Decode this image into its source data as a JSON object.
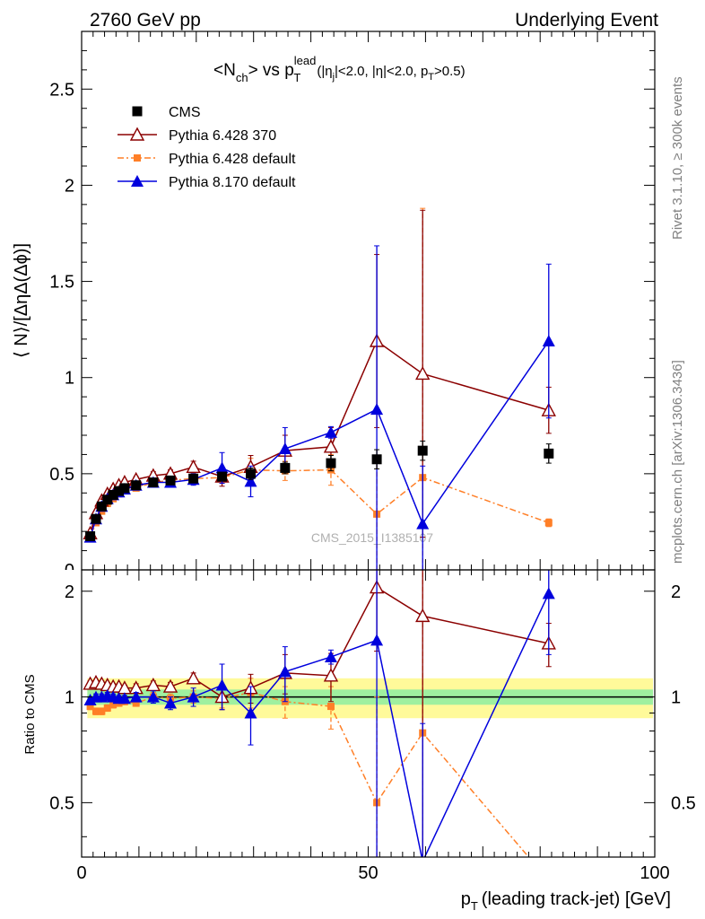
{
  "header": {
    "left": "2760 GeV pp",
    "right": "Underlying Event"
  },
  "side_labels": {
    "rivet": "Rivet 3.1.10, ≥ 300k events",
    "mcplots": "mcplots.cern.ch [arXiv:1306.3436]"
  },
  "colors": {
    "cms": "#000000",
    "p6_370": "#8b0000",
    "p6_default": "#ff7f27",
    "p8_default": "#0000dd",
    "band_inner": "#9ff09f",
    "band_outer": "#fffa9a"
  },
  "chart_data": [
    {
      "type": "scatter",
      "title": "<N_ch> vs p_T^lead (|η_j|<2.0, |η|<2.0, p_T>0.5)",
      "title_parts": {
        "main": "<N",
        "main_sub": "ch",
        "mid": "> vs p",
        "mid_sup": "lead",
        "mid_sub": "T",
        "cut1": "(|η",
        "cut1_sub": "j",
        "cut2": "|<2.0, |η|<2.0, p",
        "cut2_sub": "T",
        "cut3": ">0.5)"
      },
      "ylabel": "⟨ N⟩/[ΔηΔ(Δϕ)]",
      "watermark": "CMS_2015_I1385107",
      "xlim": [
        0,
        100
      ],
      "ylim": [
        0,
        2.8
      ],
      "y_ticks": [
        "0.5",
        "1",
        "1.5",
        "2",
        "2.5"
      ],
      "y_tick_values": [
        0.5,
        1,
        1.5,
        2,
        2.5
      ],
      "legend_position": "top-left",
      "series": [
        {
          "name": "CMS",
          "key": "cms",
          "marker": "square",
          "x": [
            1.5,
            2.5,
            3.5,
            4.5,
            5.5,
            6.5,
            7.5,
            9.5,
            12.5,
            15.5,
            19.5,
            24.5,
            29.5,
            35.5,
            43.5,
            51.5,
            59.5,
            81.5
          ],
          "y": [
            0.175,
            0.265,
            0.33,
            0.365,
            0.39,
            0.41,
            0.425,
            0.44,
            0.455,
            0.465,
            0.475,
            0.485,
            0.5,
            0.53,
            0.555,
            0.575,
            0.62,
            0.605
          ],
          "err": [
            0.01,
            0.01,
            0.01,
            0.01,
            0.01,
            0.01,
            0.01,
            0.01,
            0.015,
            0.015,
            0.02,
            0.02,
            0.03,
            0.03,
            0.04,
            0.05,
            0.05,
            0.05
          ]
        },
        {
          "name": "Pythia 6.428 370",
          "key": "p6_370",
          "marker": "open-triangle",
          "x": [
            1.5,
            2.5,
            3.5,
            4.5,
            5.5,
            6.5,
            7.5,
            9.5,
            12.5,
            15.5,
            19.5,
            24.5,
            29.5,
            35.5,
            43.5,
            51.5,
            59.5,
            81.5
          ],
          "y": [
            0.19,
            0.295,
            0.36,
            0.395,
            0.42,
            0.44,
            0.455,
            0.47,
            0.49,
            0.5,
            0.535,
            0.485,
            0.535,
            0.62,
            0.64,
            1.19,
            1.02,
            0.83
          ],
          "err": [
            0.01,
            0.01,
            0.01,
            0.01,
            0.01,
            0.01,
            0.01,
            0.015,
            0.02,
            0.02,
            0.03,
            0.05,
            0.06,
            0.08,
            0.1,
            0.45,
            0.85,
            0.12
          ]
        },
        {
          "name": "Pythia 6.428 default",
          "key": "p6_default",
          "marker": "small-square",
          "dashed": true,
          "x": [
            1.5,
            2.5,
            3.5,
            4.5,
            5.5,
            6.5,
            7.5,
            9.5,
            12.5,
            15.5,
            19.5,
            24.5,
            29.5,
            35.5,
            43.5,
            51.5,
            59.5,
            81.5
          ],
          "y": [
            0.165,
            0.245,
            0.305,
            0.345,
            0.37,
            0.395,
            0.415,
            0.425,
            0.455,
            0.465,
            0.475,
            0.48,
            0.52,
            0.515,
            0.52,
            0.29,
            0.48,
            0.245
          ],
          "err": [
            0.01,
            0.01,
            0.01,
            0.01,
            0.01,
            0.01,
            0.01,
            0.01,
            0.015,
            0.015,
            0.02,
            0.03,
            0.06,
            0.05,
            0.08,
            0.3,
            1.4,
            0.02
          ]
        },
        {
          "name": "Pythia 8.170 default",
          "key": "p8_default",
          "marker": "filled-triangle",
          "x": [
            1.5,
            2.5,
            3.5,
            4.5,
            5.5,
            6.5,
            7.5,
            9.5,
            12.5,
            15.5,
            19.5,
            24.5,
            29.5,
            35.5,
            43.5,
            51.5,
            59.5,
            81.5
          ],
          "y": [
            0.17,
            0.265,
            0.33,
            0.37,
            0.39,
            0.405,
            0.42,
            0.44,
            0.455,
            0.455,
            0.47,
            0.53,
            0.46,
            0.63,
            0.715,
            0.835,
            0.24,
            1.19
          ],
          "err": [
            0.01,
            0.01,
            0.01,
            0.01,
            0.01,
            0.01,
            0.01,
            0.015,
            0.02,
            0.02,
            0.03,
            0.08,
            0.08,
            0.11,
            0.03,
            0.85,
            0.3,
            0.4
          ]
        }
      ]
    },
    {
      "type": "scatter",
      "ylabel": "Ratio to CMS",
      "xlabel": "p_T (leading track-jet) [GeV]",
      "xlabel_parts": {
        "p": "p",
        "p_sub": "T",
        "rest": "(leading track-jet) [GeV]"
      },
      "xlim": [
        0,
        100
      ],
      "ylim": [
        0.35,
        2.3
      ],
      "x_ticks": [
        "0",
        "50",
        "100"
      ],
      "x_tick_values": [
        0,
        50,
        100
      ],
      "y_ticks": [
        "0.5",
        "1",
        "2"
      ],
      "y_tick_values": [
        0.5,
        1,
        2
      ],
      "reference_line": 1,
      "bands": {
        "inner": 0.05,
        "outer": 0.13
      },
      "series": [
        {
          "name": "Pythia 6.428 370",
          "key": "p6_370",
          "marker": "open-triangle",
          "x": [
            1.5,
            2.5,
            3.5,
            4.5,
            5.5,
            6.5,
            7.5,
            9.5,
            12.5,
            15.5,
            19.5,
            24.5,
            29.5,
            35.5,
            43.5,
            51.5,
            59.5,
            81.5
          ],
          "y": [
            1.09,
            1.1,
            1.09,
            1.08,
            1.07,
            1.07,
            1.06,
            1.06,
            1.08,
            1.07,
            1.13,
            1.0,
            1.06,
            1.17,
            1.15,
            2.05,
            1.7,
            1.42
          ],
          "err": [
            0.02,
            0.02,
            0.02,
            0.02,
            0.02,
            0.02,
            0.02,
            0.03,
            0.03,
            0.03,
            0.04,
            0.08,
            0.1,
            0.15,
            0.18,
            0.7,
            1.4,
            0.2
          ]
        },
        {
          "name": "Pythia 6.428 default",
          "key": "p6_default",
          "marker": "small-square",
          "dashed": true,
          "x": [
            1.5,
            2.5,
            3.5,
            4.5,
            5.5,
            6.5,
            7.5,
            9.5,
            12.5,
            15.5,
            19.5,
            24.5,
            29.5,
            35.5,
            43.5,
            51.5,
            59.5,
            81.5
          ],
          "y": [
            0.94,
            0.91,
            0.91,
            0.93,
            0.95,
            0.96,
            0.97,
            0.96,
            1.0,
            0.99,
            1.0,
            0.99,
            1.03,
            0.97,
            0.94,
            0.5,
            0.79,
            0.3
          ],
          "err": [
            0.02,
            0.02,
            0.02,
            0.02,
            0.02,
            0.02,
            0.02,
            0.02,
            0.03,
            0.03,
            0.04,
            0.06,
            0.1,
            0.1,
            0.13,
            0.5,
            2.3,
            0.02
          ]
        },
        {
          "name": "Pythia 8.170 default",
          "key": "p8_default",
          "marker": "filled-triangle",
          "x": [
            1.5,
            2.5,
            3.5,
            4.5,
            5.5,
            6.5,
            7.5,
            9.5,
            12.5,
            15.5,
            19.5,
            24.5,
            29.5,
            35.5,
            43.5,
            51.5,
            59.5,
            81.5
          ],
          "y": [
            0.98,
            1.0,
            1.0,
            1.01,
            1.0,
            0.99,
            0.99,
            1.0,
            1.0,
            0.96,
            1.0,
            1.08,
            0.9,
            1.18,
            1.3,
            1.45,
            0.34,
            1.97
          ],
          "err": [
            0.02,
            0.02,
            0.02,
            0.02,
            0.02,
            0.02,
            0.02,
            0.03,
            0.04,
            0.04,
            0.06,
            0.16,
            0.17,
            0.21,
            0.06,
            1.48,
            0.5,
            0.65
          ]
        }
      ]
    }
  ]
}
